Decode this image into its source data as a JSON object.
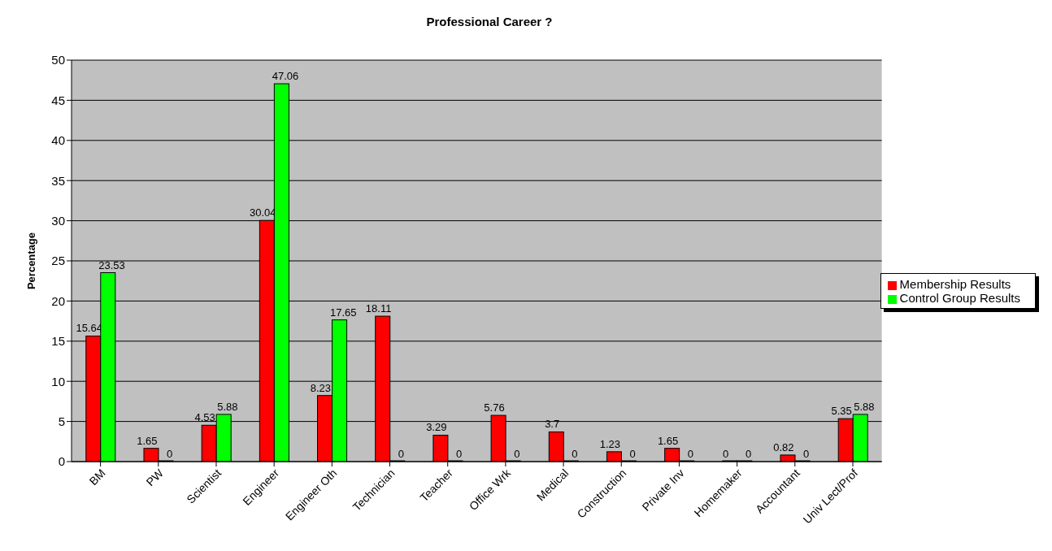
{
  "chart_data": {
    "type": "bar",
    "title": "Professional Career ?",
    "ylabel": "Percentage",
    "categories": [
      "BM",
      "PW",
      "Scientist",
      "Engineer",
      "Engineer Oth",
      "Technician",
      "Teacher",
      "Office Wrk",
      "Medical",
      "Construction",
      "Private Inv",
      "Homemaker",
      "Accountant",
      "Univ Lect/Prof"
    ],
    "series": [
      {
        "name": "Membership Results",
        "color": "#ff0000",
        "values": [
          15.64,
          1.65,
          4.53,
          30.04,
          8.23,
          18.11,
          3.29,
          5.76,
          3.7,
          1.23,
          1.65,
          0,
          0.82,
          5.35
        ]
      },
      {
        "name": "Control Group Results",
        "color": "#00ff00",
        "values": [
          23.53,
          0,
          5.88,
          47.06,
          17.65,
          0,
          0,
          0,
          0,
          0,
          0,
          0,
          0,
          5.88
        ]
      }
    ],
    "ylim": [
      0,
      50
    ],
    "yticks": [
      0,
      5,
      10,
      15,
      20,
      25,
      30,
      35,
      40,
      45,
      50
    ],
    "grid": "y",
    "legend": "right",
    "data_labels": true
  }
}
